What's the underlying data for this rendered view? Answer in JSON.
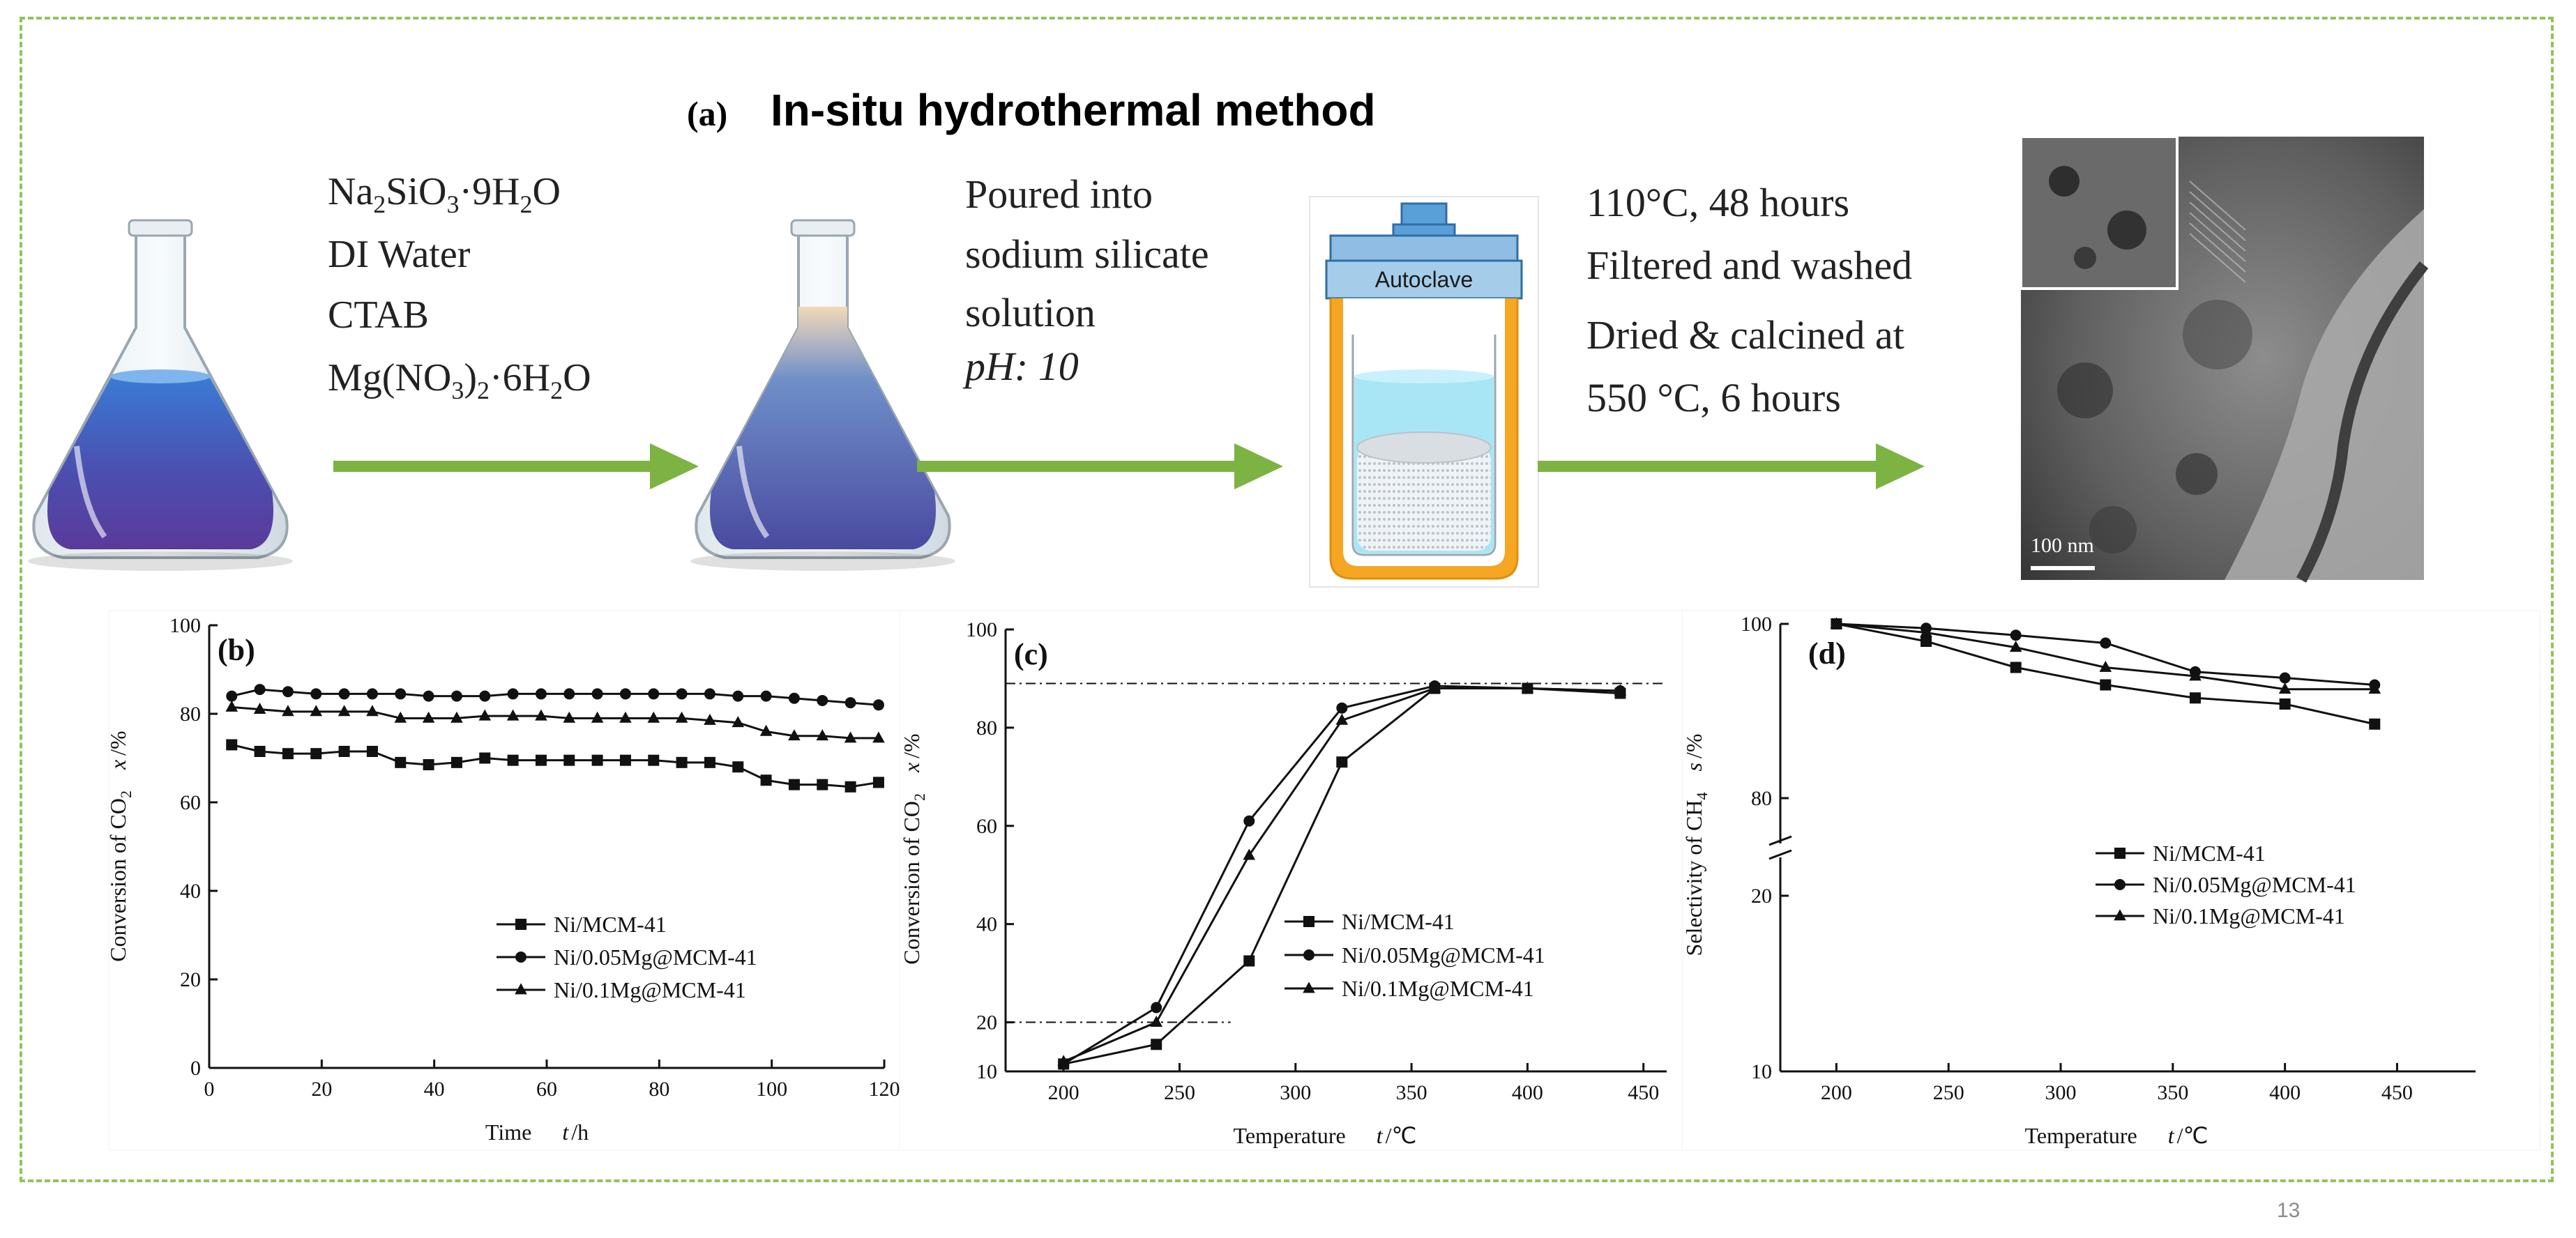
{
  "header": {
    "label": "(a)",
    "title": "In-situ hydrothermal method"
  },
  "process": {
    "step1_lines": [
      {
        "parts": [
          [
            "Na",
            ""
          ],
          [
            "2",
            "sub"
          ],
          [
            "SiO",
            ""
          ],
          [
            "3",
            "sub"
          ],
          [
            "·9H",
            ""
          ],
          [
            "2",
            "sub"
          ],
          [
            "O",
            ""
          ]
        ]
      },
      {
        "parts": [
          [
            "DI Water",
            ""
          ]
        ]
      },
      {
        "parts": [
          [
            "CTAB",
            ""
          ]
        ]
      },
      {
        "parts": [
          [
            "Mg(NO",
            ""
          ],
          [
            "3",
            "sub"
          ],
          [
            ")",
            ""
          ],
          [
            "2",
            "sub"
          ],
          [
            "·6H",
            ""
          ],
          [
            "2",
            "sub"
          ],
          [
            "O",
            ""
          ]
        ]
      }
    ],
    "step2_lines": [
      "Poured into",
      "sodium silicate",
      "solution"
    ],
    "step2_ph": "pH: 10",
    "autoclave_label": "Autoclave",
    "step3_lines": [
      "110°C, 48 hours",
      "Filtered and washed",
      "Dried & calcined at",
      "550 °C, 6 hours"
    ],
    "tem_scale": "100 nm",
    "colors": {
      "arrow": "#7cb342",
      "flask_liquid": "#3f5fb5",
      "autoclave_outer": "#f5a623",
      "autoclave_water": "#a8e6f5",
      "autoclave_label_bg": "#a5cdea"
    }
  },
  "chart_data": [
    {
      "panel": "(b)",
      "type": "line",
      "xlabel_main": "Time",
      "xlabel_sym": "t",
      "xlabel_unit": "/h",
      "ylabel": [
        "Conversion of CO",
        "2",
        "x",
        "/%"
      ],
      "xlim": [
        0,
        120
      ],
      "ylim": [
        0,
        100
      ],
      "xticks": [
        "0",
        "20",
        "40",
        "60",
        "80",
        "100",
        "120"
      ],
      "yticks": [
        "0",
        "20",
        "40",
        "60",
        "80",
        "100"
      ],
      "legend_position": "lower-right",
      "series": [
        {
          "name": "Ni/MCM-41",
          "marker": "square",
          "x": [
            4,
            9,
            14,
            19,
            24,
            29,
            34,
            39,
            44,
            49,
            54,
            59,
            64,
            69,
            74,
            79,
            84,
            89,
            94,
            99,
            104,
            109,
            114,
            119
          ],
          "y": [
            73,
            71.5,
            71,
            71,
            71.5,
            71.5,
            69,
            68.5,
            69,
            70,
            69.5,
            69.5,
            69.5,
            69.5,
            69.5,
            69.5,
            69,
            69,
            68,
            65,
            64,
            64,
            63.5,
            64.5
          ]
        },
        {
          "name": "Ni/0.05Mg@MCM-41",
          "marker": "circle",
          "x": [
            4,
            9,
            14,
            19,
            24,
            29,
            34,
            39,
            44,
            49,
            54,
            59,
            64,
            69,
            74,
            79,
            84,
            89,
            94,
            99,
            104,
            109,
            114,
            119
          ],
          "y": [
            84,
            85.5,
            85,
            84.5,
            84.5,
            84.5,
            84.5,
            84,
            84,
            84,
            84.5,
            84.5,
            84.5,
            84.5,
            84.5,
            84.5,
            84.5,
            84.5,
            84,
            84,
            83.5,
            83,
            82.5,
            82
          ]
        },
        {
          "name": "Ni/0.1Mg@MCM-41",
          "marker": "triangle",
          "x": [
            4,
            9,
            14,
            19,
            24,
            29,
            34,
            39,
            44,
            49,
            54,
            59,
            64,
            69,
            74,
            79,
            84,
            89,
            94,
            99,
            104,
            109,
            114,
            119
          ],
          "y": [
            81.5,
            81,
            80.5,
            80.5,
            80.5,
            80.5,
            79,
            79,
            79,
            79.5,
            79.5,
            79.5,
            79,
            79,
            79,
            79,
            79,
            78.5,
            78,
            76,
            75,
            75,
            74.5,
            74.5
          ]
        }
      ]
    },
    {
      "panel": "(c)",
      "type": "line",
      "xlabel_main": "Temperature",
      "xlabel_sym": "t",
      "xlabel_unit": "/℃",
      "ylabel": [
        "Conversion of CO",
        "2",
        "x",
        "/%"
      ],
      "xlim": [
        175,
        460
      ],
      "ylim": [
        10,
        100
      ],
      "xticks": [
        "200",
        "250",
        "300",
        "350",
        "400",
        "450"
      ],
      "yticks": [
        "10",
        "20",
        "40",
        "60",
        "80",
        "100"
      ],
      "reference_lines": [
        {
          "y": 89,
          "x_from": 175,
          "x_to": 460
        },
        {
          "y": 20,
          "x_from": 175,
          "x_to": 272
        }
      ],
      "legend_position": "lower-right",
      "series": [
        {
          "name": "Ni/MCM-41",
          "marker": "square",
          "x": [
            200,
            240,
            280,
            320,
            360,
            400,
            440
          ],
          "y": [
            11.5,
            15.5,
            32.5,
            73,
            88,
            88,
            87
          ]
        },
        {
          "name": "Ni/0.05Mg@MCM-41",
          "marker": "circle",
          "x": [
            200,
            240,
            280,
            320,
            360,
            400,
            440
          ],
          "y": [
            11.5,
            23,
            61,
            84,
            88.5,
            88,
            87.5
          ]
        },
        {
          "name": "Ni/0.1Mg@MCM-41",
          "marker": "triangle",
          "x": [
            200,
            240,
            280,
            320,
            360,
            400,
            440
          ],
          "y": [
            12,
            20,
            54,
            81.5,
            88,
            88,
            87.5
          ]
        }
      ]
    },
    {
      "panel": "(d)",
      "type": "line",
      "xlabel_main": "Temperature",
      "xlabel_sym": "t",
      "xlabel_unit": "/℃",
      "ylabel": [
        "Selectivity of CH",
        "4",
        "s",
        "/%"
      ],
      "xlim": [
        175,
        485
      ],
      "y_axis_broken": true,
      "yticks": [
        "10",
        "20",
        "80",
        "100"
      ],
      "upper_range": [
        80,
        100
      ],
      "legend_position": "lower-right",
      "series": [
        {
          "name": "Ni/MCM-41",
          "marker": "square",
          "x": [
            200,
            240,
            280,
            320,
            360,
            400,
            440
          ],
          "y": [
            100,
            98,
            95,
            93,
            91.5,
            90.8,
            88.5
          ]
        },
        {
          "name": "Ni/0.05Mg@MCM-41",
          "marker": "circle",
          "x": [
            200,
            240,
            280,
            320,
            360,
            400,
            440
          ],
          "y": [
            100,
            99.5,
            98.7,
            97.8,
            94.5,
            93.8,
            93
          ]
        },
        {
          "name": "Ni/0.1Mg@MCM-41",
          "marker": "triangle",
          "x": [
            200,
            240,
            280,
            320,
            360,
            400,
            440
          ],
          "y": [
            100,
            99,
            97.3,
            95,
            94,
            92.5,
            92.5
          ]
        }
      ]
    }
  ],
  "page_number": "13"
}
